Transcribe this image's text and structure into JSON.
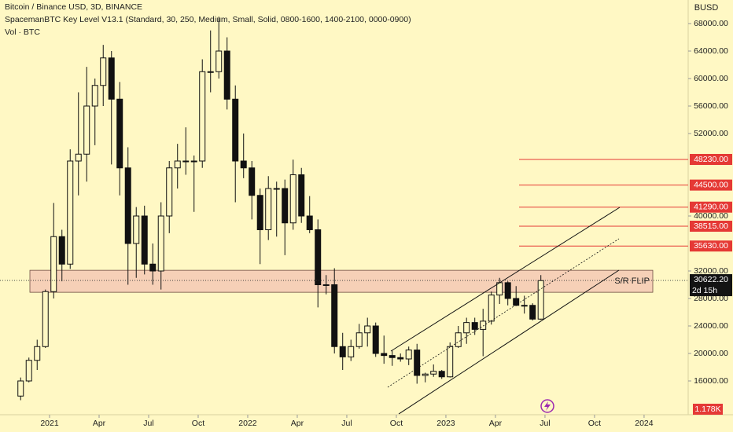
{
  "chart_data": {
    "type": "candlestick",
    "title": "Bitcoin / Binance USD, 3D, BINANCE",
    "indicator": "SpacemanBTC Key Level V13.1 (Standard, 30, 250, Medium, Small, Solid, 0800-1600, 1400-2100, 0000-0900)",
    "volume_title": "Vol · BTC",
    "y_axis_label": "BUSD",
    "x": [
      -1.75,
      -1.25,
      -0.75,
      -0.25,
      0.25,
      0.75,
      1.25,
      1.75,
      2.25,
      2.75,
      3.25,
      3.75,
      4.25,
      4.75,
      5.25,
      5.75,
      6.25,
      6.75,
      7.25,
      7.75,
      8.25,
      8.75,
      9.25,
      9.75,
      10.25,
      10.75,
      11.25,
      11.75,
      12.25,
      12.75,
      13.25,
      13.75,
      14.25,
      14.75,
      15.25,
      15.75,
      16.25,
      16.75,
      17.25,
      17.75,
      18.25,
      18.75,
      19.25,
      19.75,
      20.25,
      20.75,
      21.25,
      21.75,
      22.25,
      22.75,
      23.25,
      23.75,
      24.25,
      24.75,
      25.25,
      25.75,
      26.25,
      26.75,
      27.25,
      27.75,
      28.25,
      28.75,
      29.25,
      29.75
    ],
    "series": [
      {
        "color": "#111111",
        "open": [
          13800,
          16000,
          19000,
          21000,
          29000,
          37000,
          33000,
          48000,
          49000,
          56000,
          59000,
          63000,
          57000,
          47000,
          36000,
          40000,
          33000,
          32000,
          40000,
          47000,
          48000,
          48000,
          48000,
          61000,
          61000,
          64000,
          57000,
          48000,
          47000,
          43000,
          38000,
          44000,
          44000,
          39000,
          46000,
          40000,
          38000,
          30000,
          30000,
          21000,
          19500,
          21000,
          23000,
          24000,
          20000,
          19700,
          19400,
          19200,
          20500,
          16800,
          17000,
          17400,
          16600,
          21000,
          23000,
          24500,
          23500,
          24700,
          28500,
          30300,
          28000,
          27000,
          27000,
          25000
        ],
        "high": [
          16500,
          19400,
          22000,
          29300,
          41900,
          38000,
          49700,
          58000,
          61700,
          60000,
          64900,
          64000,
          59500,
          50000,
          41300,
          41500,
          36000,
          42000,
          48000,
          50500,
          52900,
          48800,
          62800,
          67000,
          69000,
          66000,
          59000,
          52000,
          48000,
          44000,
          45800,
          45000,
          45300,
          48200,
          47000,
          42900,
          39500,
          31400,
          32400,
          23000,
          22000,
          24300,
          25200,
          24500,
          22600,
          20400,
          20000,
          21000,
          21400,
          17200,
          18400,
          17600,
          21600,
          24000,
          25200,
          25200,
          26500,
          29000,
          31000,
          30500,
          29800,
          28400,
          27300,
          31400
        ],
        "low": [
          13200,
          15800,
          17600,
          20800,
          28000,
          30500,
          32300,
          43000,
          45000,
          50300,
          56000,
          47500,
          43000,
          30000,
          31000,
          31500,
          30000,
          29300,
          37500,
          44000,
          46000,
          40600,
          47000,
          58000,
          60000,
          55500,
          42000,
          45500,
          39500,
          33000,
          36500,
          37000,
          34300,
          38000,
          39000,
          37500,
          26700,
          28600,
          20000,
          17600,
          18900,
          20700,
          21000,
          19500,
          18500,
          18200,
          18800,
          18300,
          15600,
          15800,
          16600,
          16300,
          16500,
          20800,
          21400,
          22700,
          19600,
          24200,
          27200,
          27000,
          26900,
          25800,
          24800,
          24900
        ],
        "close": [
          16000,
          19000,
          21000,
          29000,
          37000,
          33000,
          48000,
          49000,
          56000,
          59000,
          63000,
          57000,
          47000,
          36000,
          40000,
          33000,
          32000,
          40000,
          47000,
          48000,
          48000,
          48000,
          61000,
          61000,
          64000,
          57000,
          48000,
          47000,
          43000,
          38000,
          44000,
          44000,
          39000,
          46000,
          40000,
          38000,
          30000,
          30000,
          21000,
          19500,
          21000,
          23000,
          24000,
          20000,
          19700,
          19400,
          19200,
          20500,
          16800,
          17000,
          17400,
          16600,
          21000,
          23000,
          24500,
          23500,
          24700,
          28500,
          30300,
          28000,
          27000,
          27000,
          25000,
          30600
        ]
      }
    ],
    "xlim": [
      -3,
      38.67
    ],
    "xticks": [
      {
        "value": 0,
        "label": "2021"
      },
      {
        "value": 3,
        "label": "Apr"
      },
      {
        "value": 6,
        "label": "Jul"
      },
      {
        "value": 9,
        "label": "Oct"
      },
      {
        "value": 12,
        "label": "2022"
      },
      {
        "value": 15,
        "label": "Apr"
      },
      {
        "value": 18,
        "label": "Jul"
      },
      {
        "value": 21,
        "label": "Oct"
      },
      {
        "value": 24,
        "label": "2023"
      },
      {
        "value": 27,
        "label": "Apr"
      },
      {
        "value": 30,
        "label": "Jul"
      },
      {
        "value": 33,
        "label": "Oct"
      },
      {
        "value": 36,
        "label": "2024"
      }
    ],
    "ylim": [
      11086,
      71429
    ],
    "yticks": [
      {
        "value": 68000,
        "label": "68000.00"
      },
      {
        "value": 64000,
        "label": "64000.00"
      },
      {
        "value": 60000,
        "label": "60000.00"
      },
      {
        "value": 56000,
        "label": "56000.00"
      },
      {
        "value": 52000,
        "label": "52000.00"
      },
      {
        "value": 40000,
        "label": "40000.00"
      },
      {
        "value": 32000,
        "label": "32000.00"
      },
      {
        "value": 28000,
        "label": "28000.00"
      },
      {
        "value": 24000,
        "label": "24000.00"
      },
      {
        "value": 20000,
        "label": "20000.00"
      },
      {
        "value": 16000,
        "label": "16000.00"
      }
    ],
    "key_levels": {
      "color": "#e53935",
      "levels": [
        {
          "value": 48230,
          "label": "48230.00"
        },
        {
          "value": 44500,
          "label": "44500.00"
        },
        {
          "value": 41290,
          "label": "41290.00"
        },
        {
          "value": 38515,
          "label": "38515.00"
        },
        {
          "value": 35630,
          "label": "35630.00"
        }
      ]
    },
    "zone": {
      "label": "S/R FLIP",
      "low": 28900,
      "high": 32100,
      "color": "#f4c6b4"
    },
    "last_price": {
      "value": 30622.2,
      "label": "30622.20",
      "countdown": "2d 15h"
    },
    "volume": {
      "value": 1178,
      "label": "1.178K"
    }
  }
}
